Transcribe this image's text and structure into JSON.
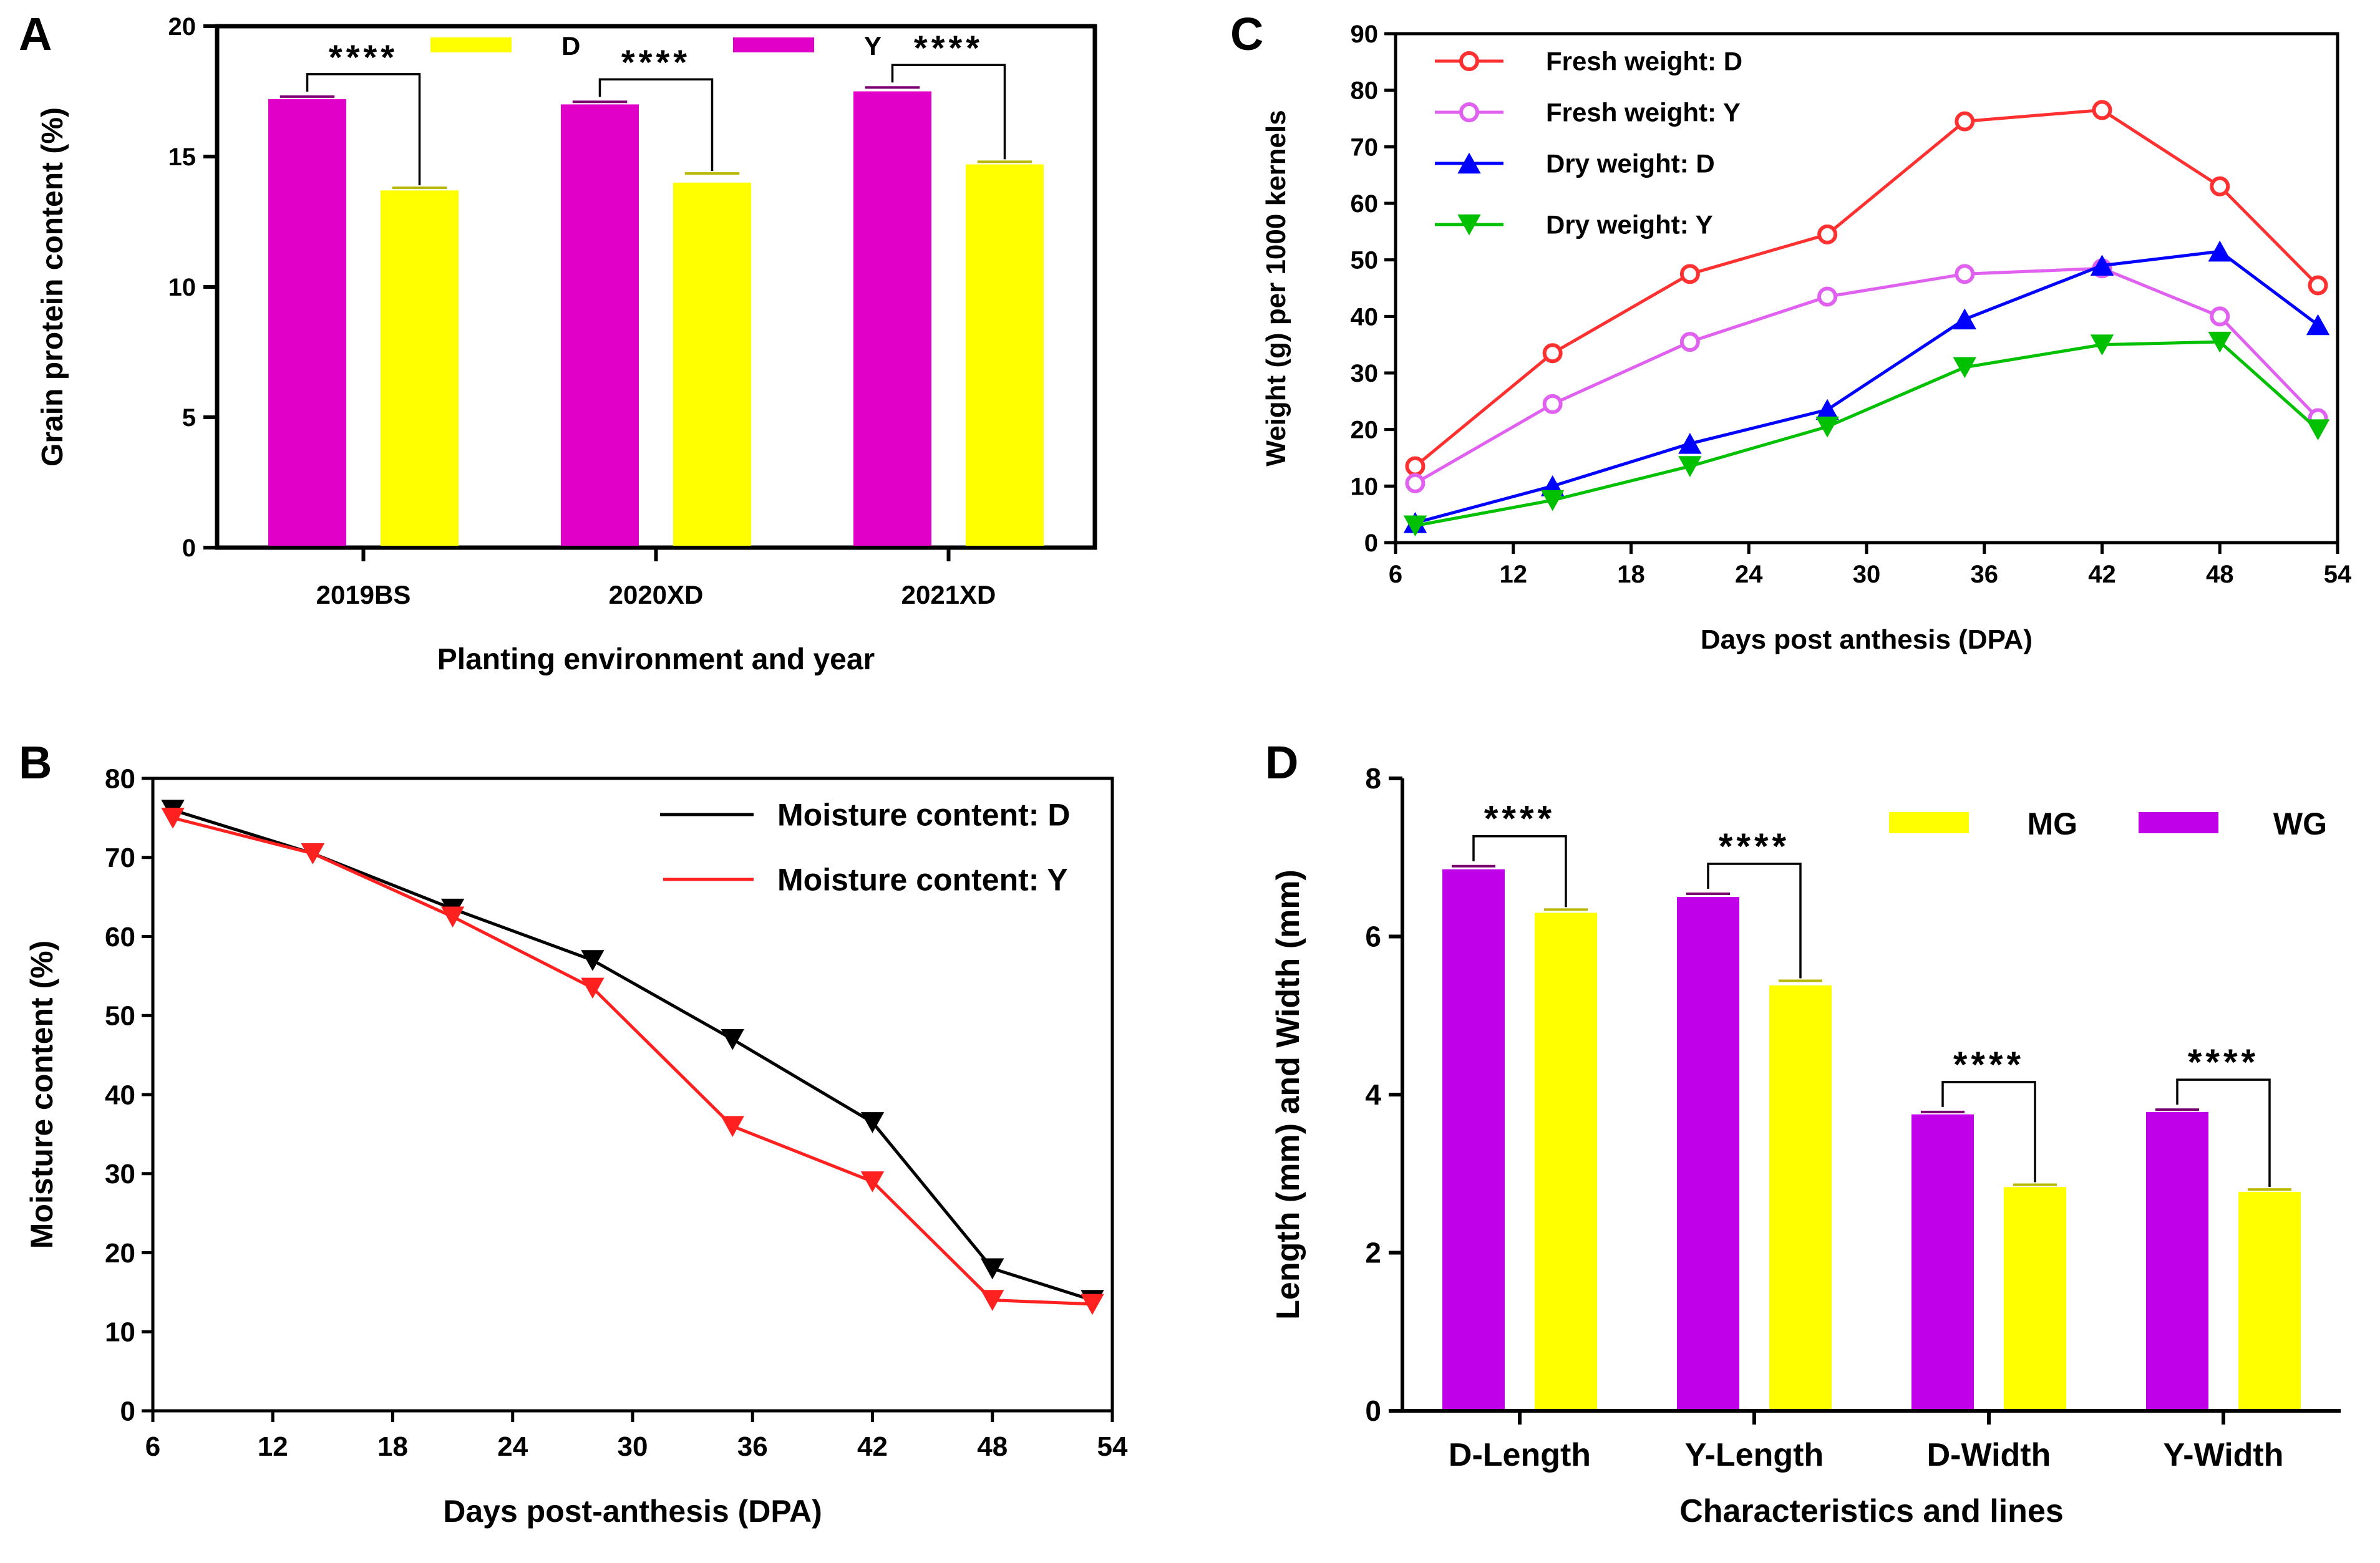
{
  "chart_data": [
    {
      "panel": "A",
      "type": "bar",
      "xlabel": "Planting environment and year",
      "ylabel": "Grain protein content (%)",
      "ylim": [
        0,
        20
      ],
      "yticks": [
        0,
        5,
        10,
        15,
        20
      ],
      "categories": [
        "2019BS",
        "2020XD",
        "2021XD"
      ],
      "series": [
        {
          "name": "Y",
          "color": "#E000C8",
          "values": [
            17.2,
            17.0,
            17.5
          ],
          "errors": [
            0.1,
            0.1,
            0.15
          ]
        },
        {
          "name": "D",
          "color": "#FFFF00",
          "values": [
            13.7,
            14.0,
            14.7
          ],
          "errors": [
            0.1,
            0.35,
            0.1
          ]
        }
      ],
      "legend": [
        {
          "label": "D",
          "color": "#FFFF00"
        },
        {
          "label": "Y",
          "color": "#E000C8"
        }
      ],
      "significance": [
        "****",
        "****",
        "****"
      ]
    },
    {
      "panel": "B",
      "type": "line",
      "xlabel": "Days post-anthesis (DPA)",
      "ylabel": "Moisture content (%)",
      "xlim": [
        6,
        54
      ],
      "ylim": [
        0,
        80
      ],
      "xticks": [
        6,
        12,
        18,
        24,
        30,
        36,
        42,
        48,
        54
      ],
      "yticks": [
        0,
        10,
        20,
        30,
        40,
        50,
        60,
        70,
        80
      ],
      "x": [
        7,
        14,
        21,
        28,
        35,
        42,
        48,
        53
      ],
      "series": [
        {
          "name": "Moisture content: D",
          "color": "#000000",
          "marker": "triangle-down",
          "values": [
            76,
            70.5,
            63.5,
            57,
            47,
            36.5,
            18,
            14
          ]
        },
        {
          "name": "Moisture content: Y",
          "color": "#FF2020",
          "marker": "triangle-down",
          "values": [
            75,
            70.5,
            62.5,
            53.5,
            36,
            29,
            14,
            13.5
          ]
        }
      ]
    },
    {
      "panel": "C",
      "type": "line",
      "xlabel": "Days post anthesis (DPA)",
      "ylabel": "Weight (g) per 1000 kernels",
      "xlim": [
        6,
        54
      ],
      "ylim": [
        0,
        90
      ],
      "xticks": [
        6,
        12,
        18,
        24,
        30,
        36,
        42,
        48,
        54
      ],
      "yticks": [
        0,
        10,
        20,
        30,
        40,
        50,
        60,
        70,
        80,
        90
      ],
      "x": [
        7,
        14,
        21,
        28,
        35,
        42,
        48,
        53
      ],
      "series": [
        {
          "name": "Fresh weight: D",
          "color": "#FF3030",
          "marker": "circle-open",
          "values": [
            13.5,
            33.5,
            47.5,
            54.5,
            74.5,
            76.5,
            63,
            45.5
          ]
        },
        {
          "name": "Fresh weight: Y",
          "color": "#E060F0",
          "marker": "circle-open",
          "values": [
            10.5,
            24.5,
            35.5,
            43.5,
            47.5,
            48.5,
            40,
            22
          ]
        },
        {
          "name": "Dry weight: D",
          "color": "#0000FF",
          "marker": "triangle-up",
          "values": [
            3.5,
            10,
            17.5,
            23.5,
            39.5,
            49,
            51.5,
            38.5
          ]
        },
        {
          "name": "Dry weight: Y",
          "color": "#00C000",
          "marker": "triangle-down",
          "values": [
            3,
            7.5,
            13.5,
            20.5,
            31,
            35,
            35.5,
            20
          ]
        }
      ]
    },
    {
      "panel": "D",
      "type": "bar",
      "xlabel": "Characteristics and lines",
      "ylabel": "Length (mm) and Width (mm)",
      "ylim": [
        0,
        8
      ],
      "yticks": [
        0,
        2,
        4,
        6,
        8
      ],
      "categories": [
        "D-Length",
        "Y-Length",
        "D-Width",
        "Y-Width"
      ],
      "series": [
        {
          "name": "WG",
          "color": "#C000E8",
          "values": [
            6.85,
            6.5,
            3.75,
            3.78
          ],
          "errors": [
            0.04,
            0.04,
            0.03,
            0.03
          ]
        },
        {
          "name": "MG",
          "color": "#FFFF00",
          "values": [
            6.3,
            5.38,
            2.83,
            2.77
          ],
          "errors": [
            0.04,
            0.06,
            0.03,
            0.03
          ]
        }
      ],
      "legend": [
        {
          "label": "MG",
          "color": "#FFFF00"
        },
        {
          "label": "WG",
          "color": "#C000E8"
        }
      ],
      "significance": [
        "****",
        "****",
        "****",
        "****"
      ]
    }
  ]
}
